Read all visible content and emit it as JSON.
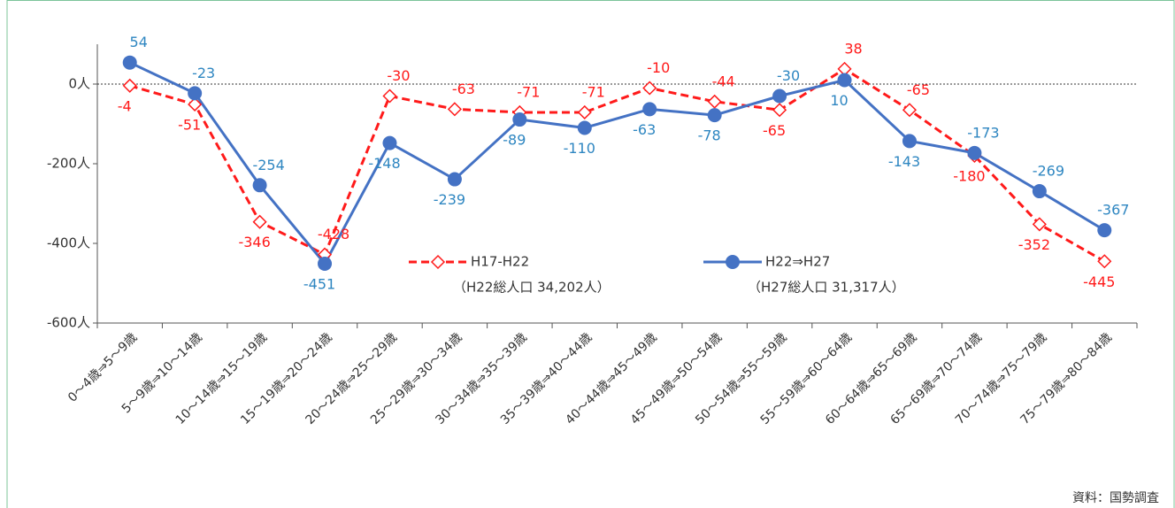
{
  "chart_data": {
    "type": "line",
    "categories": [
      "0～4歳⇒5～9歳",
      "5～9歳⇒10～14歳",
      "10～14歳⇒15～19歳",
      "15～19歳⇒20～24歳",
      "20～24歳⇒25～29歳",
      "25～29歳⇒30～34歳",
      "30～34歳⇒35～39歳",
      "35～39歳⇒40～44歳",
      "40～44歳⇒45～49歳",
      "45～49歳⇒50～54歳",
      "50～54歳⇒55～59歳",
      "55～59歳⇒60～64歳",
      "60～64歳⇒65～69歳",
      "65～69歳⇒70～74歳",
      "70～74歳⇒75～79歳",
      "75～79歳⇒80～84歳"
    ],
    "series": [
      {
        "name": "H17-H22",
        "subtitle": "（H22総人口 34,202人）",
        "color": "#ff1a1a",
        "dashed": true,
        "marker": "diamond",
        "values": [
          -4,
          -51,
          -346,
          -428,
          -30,
          -63,
          -71,
          -71,
          -10,
          -44,
          -65,
          38,
          -65,
          -180,
          -352,
          -445
        ]
      },
      {
        "name": "H22⇒H27",
        "subtitle": "（H27総人口 31,317人）",
        "color": "#4472c4",
        "label_color": "#2e86c1",
        "dashed": false,
        "marker": "circle",
        "values": [
          54,
          -23,
          -254,
          -451,
          -148,
          -239,
          -89,
          -110,
          -63,
          -78,
          -30,
          10,
          -143,
          -173,
          -269,
          -367
        ]
      }
    ],
    "ylim": [
      -600,
      100
    ],
    "yticks": [
      {
        "value": 0,
        "label": "0人"
      },
      {
        "value": -200,
        "label": "-200人"
      },
      {
        "value": -400,
        "label": "-400人"
      },
      {
        "value": -600,
        "label": "-600人"
      }
    ],
    "zero_line": true,
    "source": "資料：国勢調査"
  }
}
